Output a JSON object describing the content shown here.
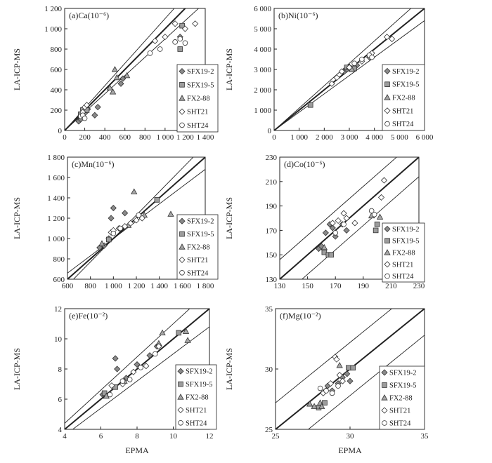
{
  "figure": {
    "ylabel": "LA-ICP-MS",
    "xlabel": "EPMA"
  },
  "legend_series": [
    {
      "name": "SFX19-2",
      "marker": "diamond",
      "fill": "#8c8c8c"
    },
    {
      "name": "SFX19-5",
      "marker": "square",
      "fill": "#9a9a9a"
    },
    {
      "name": "FX2-88",
      "marker": "triangle",
      "fill": "#a8a8a8"
    },
    {
      "name": "SHT21",
      "marker": "diamond",
      "fill": "#ffffff"
    },
    {
      "name": "SHT24",
      "marker": "circle",
      "fill": "#ffffff"
    }
  ],
  "chart_data": [
    {
      "type": "scatter",
      "title": "(a)Ca(10⁻⁶)",
      "xlim": [
        0,
        1400
      ],
      "ylim": [
        0,
        1200
      ],
      "xticks": [
        0,
        200,
        400,
        600,
        800,
        1000,
        1200,
        1400
      ],
      "yticks": [
        0,
        200,
        400,
        600,
        800,
        1000,
        1200
      ],
      "xtick_labels": [
        "0",
        "200",
        "400",
        "600",
        "800",
        "1 000",
        "1 200",
        "1 400"
      ],
      "ytick_labels": [
        "0",
        "200",
        "400",
        "600",
        "800",
        "1 000",
        "1 200"
      ],
      "reference_lines": [
        {
          "slope": 1,
          "intercept": 0,
          "bold": true
        },
        {
          "slope": 1.1,
          "intercept": 0,
          "bold": false
        },
        {
          "slope": 0.9,
          "intercept": 0,
          "bold": false
        }
      ],
      "legend_position": "lower-right",
      "series": [
        {
          "name": "SFX19-2",
          "x": [
            140,
            160,
            180,
            200,
            230,
            300,
            330,
            560,
            580,
            1150
          ],
          "y": [
            90,
            110,
            140,
            170,
            210,
            150,
            230,
            460,
            510,
            920
          ]
        },
        {
          "name": "SFX19-5",
          "x": [
            160,
            180,
            220,
            1150,
            1170
          ],
          "y": [
            160,
            200,
            200,
            800,
            1030
          ]
        },
        {
          "name": "FX2-88",
          "x": [
            450,
            480,
            500,
            520,
            620
          ],
          "y": [
            420,
            380,
            600,
            520,
            540
          ]
        },
        {
          "name": "SHT21",
          "x": [
            180,
            200,
            220,
            900,
            1000,
            1100,
            1200,
            1300
          ],
          "y": [
            180,
            230,
            250,
            880,
            920,
            1050,
            1000,
            1050
          ]
        },
        {
          "name": "SHT24",
          "x": [
            160,
            180,
            200,
            850,
            950,
            1100,
            1150,
            1200
          ],
          "y": [
            140,
            150,
            120,
            760,
            800,
            870,
            900,
            860
          ]
        }
      ]
    },
    {
      "type": "scatter",
      "title": "(b)Ni(10⁻⁶)",
      "xlim": [
        0,
        6000
      ],
      "ylim": [
        0,
        6000
      ],
      "xticks": [
        0,
        1000,
        2000,
        3000,
        4000,
        5000,
        6000
      ],
      "yticks": [
        0,
        1000,
        2000,
        3000,
        4000,
        5000,
        6000
      ],
      "xtick_labels": [
        "0",
        "1 000",
        "2 000",
        "3 000",
        "4 000",
        "5 000",
        "6 000"
      ],
      "ytick_labels": [
        "0",
        "1 000",
        "2 000",
        "3 000",
        "4 000",
        "5 000",
        "6 000"
      ],
      "reference_lines": [
        {
          "slope": 1,
          "intercept": 0,
          "bold": true
        },
        {
          "slope": 1.1,
          "intercept": 0,
          "bold": false
        },
        {
          "slope": 0.9,
          "intercept": 0,
          "bold": false
        }
      ],
      "legend_position": "lower-right",
      "series": [
        {
          "name": "SFX19-2",
          "x": [
            2800,
            2900,
            3000,
            3100,
            3300,
            3800
          ],
          "y": [
            2900,
            3000,
            3100,
            3050,
            3200,
            3600
          ]
        },
        {
          "name": "SFX19-5",
          "x": [
            1450,
            2900,
            3200
          ],
          "y": [
            1250,
            3100,
            3050
          ]
        },
        {
          "name": "FX2-88",
          "x": [
            3000,
            3100
          ],
          "y": [
            3150,
            3000
          ]
        },
        {
          "name": "SHT21",
          "x": [
            2300,
            2500,
            2700,
            3000,
            3500,
            3900,
            4500,
            4700
          ],
          "y": [
            2300,
            2600,
            2900,
            3100,
            3400,
            3800,
            4600,
            4500
          ]
        },
        {
          "name": "SHT24",
          "x": [
            3200,
            3500,
            3800,
            3900
          ],
          "y": [
            3300,
            3500,
            3700,
            3600
          ]
        }
      ]
    },
    {
      "type": "scatter",
      "title": "(c)Mn(10⁻⁶)",
      "xlim": [
        600,
        1800
      ],
      "ylim": [
        600,
        1800
      ],
      "xticks": [
        600,
        800,
        1000,
        1200,
        1400,
        1600,
        1800
      ],
      "yticks": [
        600,
        800,
        1000,
        1200,
        1400,
        1600,
        1800
      ],
      "xtick_labels": [
        "600",
        "800",
        "1 000",
        "1 200",
        "1 400",
        "1 600",
        "1 800"
      ],
      "ytick_labels": [
        "600",
        "800",
        "1 000",
        "1 200",
        "1 400",
        "1 600",
        "1 800"
      ],
      "reference_lines": [
        {
          "slope": 1,
          "intercept": 0,
          "bold": true
        },
        {
          "slope": 1.15,
          "intercept": -150,
          "bold": false
        },
        {
          "slope": 0.85,
          "intercept": 150,
          "bold": false
        }
      ],
      "legend_position": "lower-right",
      "series": [
        {
          "name": "SFX19-2",
          "x": [
            880,
            920,
            960,
            980,
            1000,
            1050,
            1100
          ],
          "y": [
            910,
            930,
            1000,
            1200,
            1300,
            1100,
            1250
          ]
        },
        {
          "name": "SFX19-5",
          "x": [
            960,
            1380
          ],
          "y": [
            990,
            1380
          ]
        },
        {
          "name": "FX2-88",
          "x": [
            900,
            1130,
            1180,
            1270,
            1500
          ],
          "y": [
            950,
            1130,
            1460,
            1230,
            1240
          ]
        },
        {
          "name": "SHT21",
          "x": [
            980,
            1000,
            1050,
            1100,
            1150,
            1200,
            1250
          ],
          "y": [
            1060,
            1080,
            1100,
            1120,
            1150,
            1180,
            1200
          ]
        },
        {
          "name": "SHT24",
          "x": [
            1000,
            1060,
            1220
          ],
          "y": [
            1050,
            1100,
            1230
          ]
        }
      ]
    },
    {
      "type": "scatter",
      "title": "(d)Co(10⁻⁶)",
      "xlim": [
        130,
        230
      ],
      "ylim": [
        130,
        230
      ],
      "xticks": [
        130,
        150,
        170,
        190,
        210,
        230
      ],
      "yticks": [
        130,
        150,
        170,
        190,
        210,
        230
      ],
      "xtick_labels": [
        "130",
        "150",
        "170",
        "190",
        "210",
        "230"
      ],
      "ytick_labels": [
        "130",
        "150",
        "170",
        "190",
        "210",
        "230"
      ],
      "reference_lines": [
        {
          "slope": 1,
          "intercept": 0,
          "bold": true
        },
        {
          "slope": 1,
          "intercept": 16,
          "bold": false
        },
        {
          "slope": 1,
          "intercept": -16,
          "bold": false
        }
      ],
      "legend_position": "lower-right",
      "series": [
        {
          "name": "SFX19-2",
          "x": [
            158,
            160,
            163,
            166,
            168,
            170,
            175,
            178
          ],
          "y": [
            155,
            157,
            168,
            175,
            172,
            165,
            175,
            170
          ]
        },
        {
          "name": "SFX19-5",
          "x": [
            162,
            165,
            167,
            199,
            200
          ],
          "y": [
            152,
            150,
            150,
            170,
            175
          ]
        },
        {
          "name": "FX2-88",
          "x": [
            162,
            196,
            202
          ],
          "y": [
            156,
            182,
            181
          ]
        },
        {
          "name": "SHT21",
          "x": [
            168,
            172,
            176,
            178,
            184,
            203,
            205
          ],
          "y": [
            176,
            178,
            184,
            180,
            176,
            197,
            211
          ]
        },
        {
          "name": "SHT24",
          "x": [
            170,
            176,
            196,
            198
          ],
          "y": [
            168,
            175,
            186,
            183
          ]
        }
      ]
    },
    {
      "type": "scatter",
      "title": "(e)Fe(10⁻²)",
      "xlim": [
        4,
        12
      ],
      "ylim": [
        4,
        12
      ],
      "xticks": [
        4,
        6,
        8,
        10,
        12
      ],
      "yticks": [
        4,
        6,
        8,
        10,
        12
      ],
      "xtick_labels": [
        "4",
        "6",
        "8",
        "10",
        "12"
      ],
      "ytick_labels": [
        "4",
        "6",
        "8",
        "10",
        "12"
      ],
      "reference_lines": [
        {
          "slope": 1,
          "intercept": 0,
          "bold": true
        },
        {
          "slope": 1.1,
          "intercept": 0,
          "bold": false
        },
        {
          "slope": 0.9,
          "intercept": 0,
          "bold": false
        }
      ],
      "legend_position": "lower-right",
      "series": [
        {
          "name": "SFX19-2",
          "x": [
            6.1,
            6.8,
            6.9,
            7.4,
            8.0,
            8.7,
            9.1
          ],
          "y": [
            6.3,
            8.7,
            8.0,
            7.4,
            8.3,
            8.9,
            9.5
          ]
        },
        {
          "name": "SFX19-5",
          "x": [
            6.2,
            6.8,
            10.3
          ],
          "y": [
            6.4,
            6.8,
            10.4
          ]
        },
        {
          "name": "FX2-88",
          "x": [
            6.3,
            7.3,
            9.2,
            9.4,
            10.7,
            10.8
          ],
          "y": [
            6.2,
            7.2,
            9.7,
            10.4,
            10.5,
            9.9
          ]
        },
        {
          "name": "SHT21",
          "x": [
            6.6,
            7.2,
            7.8,
            8.5,
            9.2
          ],
          "y": [
            6.9,
            7.0,
            7.8,
            8.2,
            9.5
          ]
        },
        {
          "name": "SHT24",
          "x": [
            6.5,
            7.2,
            7.6,
            8.2,
            9.0
          ],
          "y": [
            6.3,
            7.2,
            7.3,
            8.1,
            9.0
          ]
        }
      ]
    },
    {
      "type": "scatter",
      "title": "(f)Mg(10⁻²)",
      "xlim": [
        25,
        35
      ],
      "ylim": [
        25,
        35
      ],
      "xticks": [
        25,
        30,
        35
      ],
      "yticks": [
        25,
        30,
        35
      ],
      "xtick_labels": [
        "25",
        "30",
        "35"
      ],
      "ytick_labels": [
        "25",
        "30",
        "35"
      ],
      "reference_lines": [
        {
          "slope": 1,
          "intercept": 0,
          "bold": true
        },
        {
          "slope": 1,
          "intercept": 2.2,
          "bold": false
        },
        {
          "slope": 1,
          "intercept": -2.2,
          "bold": false
        }
      ],
      "legend_position": "lower-right",
      "series": [
        {
          "name": "SFX19-2",
          "x": [
            28.5,
            28.8,
            29.2,
            29.5,
            29.8,
            30.0
          ],
          "y": [
            28.6,
            28.2,
            28.8,
            29.3,
            29.6,
            29.0
          ]
        },
        {
          "name": "SFX19-5",
          "x": [
            27.9,
            28.3,
            29.9,
            30.2
          ],
          "y": [
            26.8,
            27.2,
            30.1,
            30.1
          ]
        },
        {
          "name": "FX2-88",
          "x": [
            27.3,
            27.6,
            28.0,
            28.1,
            29.3
          ],
          "y": [
            27.1,
            26.9,
            27.2,
            26.9,
            30.3
          ]
        },
        {
          "name": "SHT21",
          "x": [
            28.2,
            28.7,
            29.0,
            29.1,
            29.3,
            29.5
          ],
          "y": [
            28.0,
            28.8,
            31.0,
            30.8,
            29.5,
            29.0
          ]
        },
        {
          "name": "SHT24",
          "x": [
            28.0,
            28.4,
            28.8,
            29.2
          ],
          "y": [
            28.4,
            28.2,
            28.0,
            28.6
          ]
        }
      ]
    }
  ]
}
